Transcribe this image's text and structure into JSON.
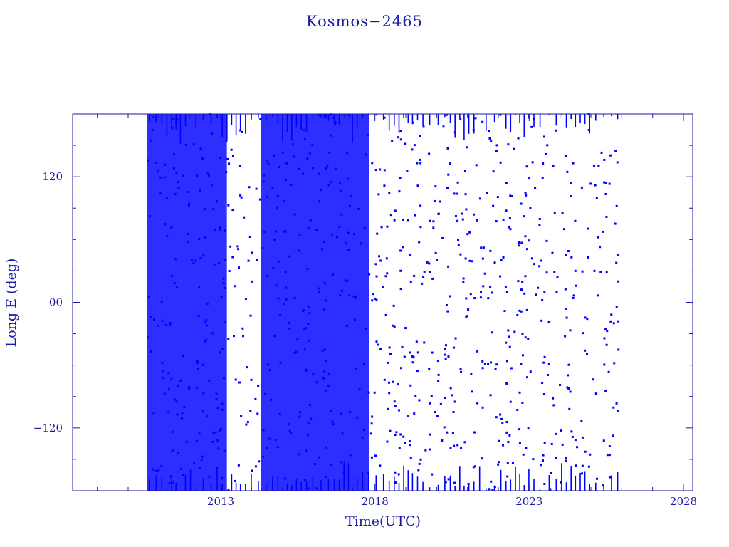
{
  "chart_data": {
    "type": "line",
    "title": "Kosmos−2465",
    "xlabel": "Time(UTC)",
    "ylabel": "Long E (deg)",
    "xlim": [
      2008.2,
      2028.3
    ],
    "ylim": [
      -180,
      180
    ],
    "x_ticks": [
      2013,
      2018,
      2023,
      2028
    ],
    "y_ticks": [
      -120,
      0,
      120
    ],
    "y_tick_labels": [
      "−120",
      "00",
      "120"
    ],
    "grid": false,
    "legend": "none",
    "series": [
      {
        "x_start": 2010.6,
        "x_end": 2025.9,
        "y_min": -180,
        "y_max": 180,
        "pattern": "wrapping longitude drift",
        "color": "#0000ff"
      }
    ]
  }
}
